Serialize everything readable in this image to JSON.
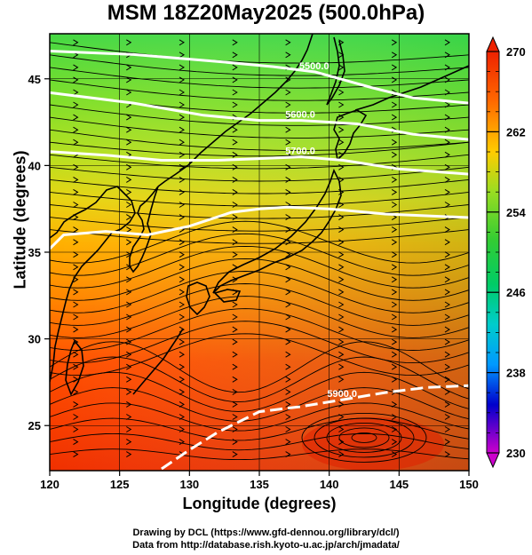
{
  "title": "MSM 18Z20May2025 (500.0hPa)",
  "xaxis": {
    "label": "Longitude (degrees)",
    "range": [
      120,
      150
    ],
    "ticks": [
      120,
      125,
      130,
      135,
      140,
      145,
      150
    ]
  },
  "yaxis": {
    "label": "Latitude  (degrees)",
    "range": [
      22.4,
      47.6
    ],
    "ticks": [
      25,
      30,
      35,
      40,
      45
    ]
  },
  "colorbar": {
    "range": [
      230,
      270
    ],
    "labels": [
      270,
      262,
      254,
      246,
      238,
      230
    ],
    "colors": [
      "#cc00cc",
      "#0000cc",
      "#0066ff",
      "#00cccc",
      "#00cc66",
      "#33cc33",
      "#99dd22",
      "#ffcc00",
      "#ff8800",
      "#ff3300",
      "#ee2200"
    ]
  },
  "contours": [
    {
      "value": 5500,
      "label": "5500.0",
      "points": [
        [
          120,
          46.6
        ],
        [
          126,
          46.4
        ],
        [
          132,
          46.0
        ],
        [
          136,
          45.7
        ],
        [
          139,
          45.4
        ],
        [
          143,
          44.5
        ],
        [
          146,
          43.9
        ],
        [
          150,
          43.6
        ]
      ]
    },
    {
      "value": 5600,
      "label": "5600.0",
      "points": [
        [
          120,
          44.2
        ],
        [
          126,
          43.6
        ],
        [
          131,
          42.9
        ],
        [
          135,
          42.6
        ],
        [
          138,
          42.6
        ],
        [
          142,
          42.4
        ],
        [
          146,
          41.8
        ],
        [
          150,
          41.5
        ]
      ]
    },
    {
      "value": 5700,
      "label": "5700.0",
      "points": [
        [
          120,
          40.8
        ],
        [
          124,
          40.6
        ],
        [
          128,
          40.3
        ],
        [
          132,
          40.3
        ],
        [
          135,
          40.4
        ],
        [
          138,
          40.5
        ],
        [
          141,
          40.3
        ],
        [
          145,
          39.8
        ],
        [
          150,
          39.5
        ]
      ]
    },
    {
      "value": 5800,
      "label": "",
      "points": [
        [
          120,
          35.2
        ],
        [
          121,
          36.0
        ],
        [
          124,
          36.2
        ],
        [
          127,
          36.0
        ],
        [
          130,
          36.5
        ],
        [
          133,
          37.3
        ],
        [
          135,
          37.5
        ],
        [
          137,
          37.6
        ],
        [
          140,
          37.5
        ],
        [
          144,
          37.2
        ],
        [
          150,
          37.0
        ]
      ]
    },
    {
      "value": 5900,
      "label": "5900.0",
      "points": [
        [
          128,
          22.5
        ],
        [
          130,
          23.6
        ],
        [
          132,
          24.6
        ],
        [
          135,
          25.8
        ],
        [
          138,
          26.1
        ],
        [
          141,
          26.5
        ],
        [
          144,
          26.9
        ],
        [
          147,
          27.2
        ],
        [
          150,
          27.3
        ]
      ]
    }
  ],
  "credits": [
    "Drawing by DCL (https://www.gfd-dennou.org/library/dcl/)",
    "Data from http://database.rish.kyoto-u.ac.jp/arch/jmadata/"
  ]
}
